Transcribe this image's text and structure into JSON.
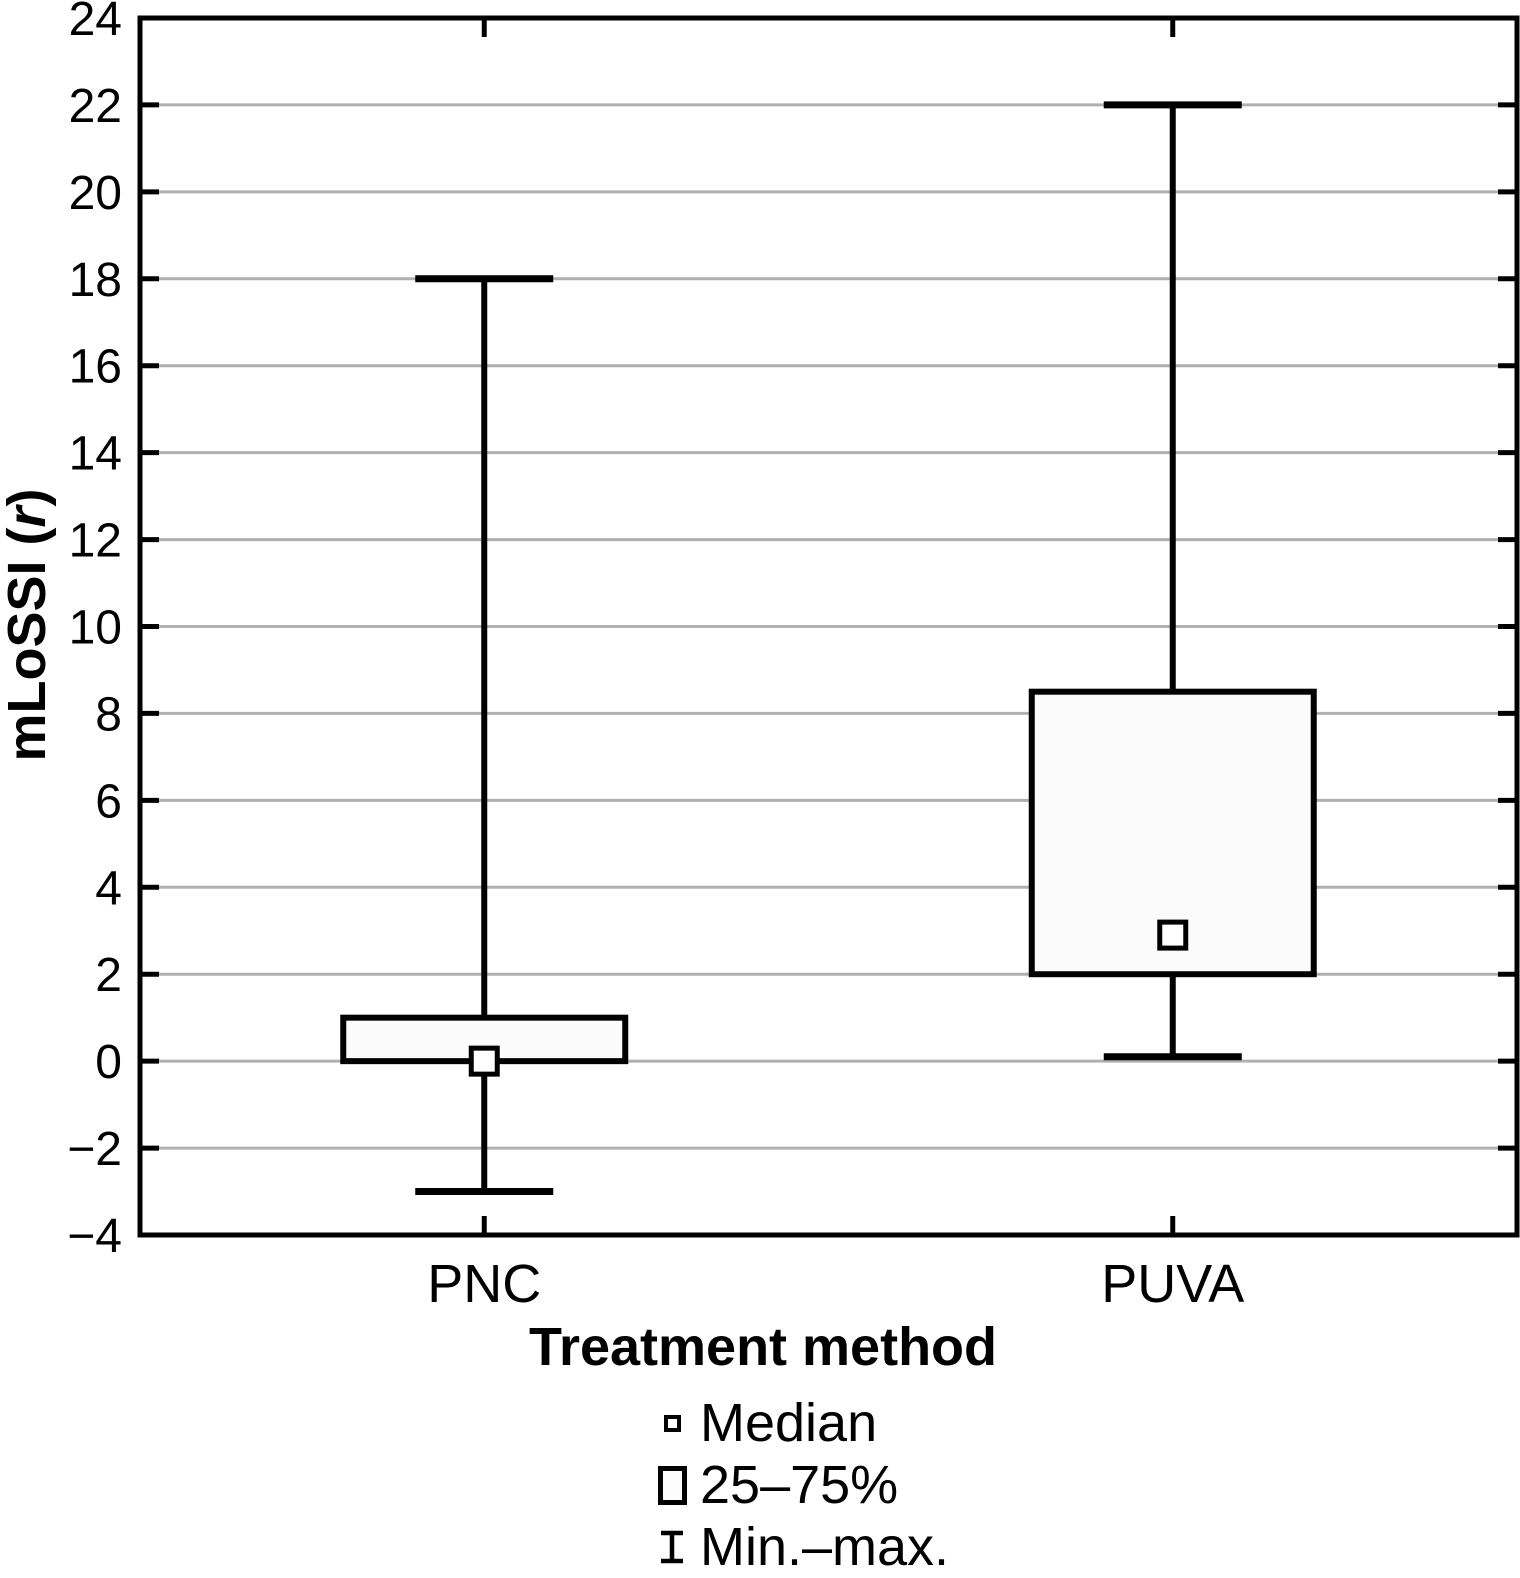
{
  "y_axis": {
    "label_prefix": "mLoSSI (",
    "label_italic": "r",
    "label_suffix": ")"
  },
  "x_axis": {
    "label": "Treatment method"
  },
  "legend": {
    "items": [
      {
        "symbol": "median-point-icon",
        "label": "Median"
      },
      {
        "symbol": "iqr-box-icon",
        "label": "25–75%"
      },
      {
        "symbol": "min-max-whisker-icon",
        "label": "Min.–max."
      }
    ]
  },
  "chart_data": {
    "type": "boxplot",
    "title": "",
    "xlabel": "Treatment method",
    "ylabel": "mLoSSI (r)",
    "categories": [
      "PNC",
      "PUVA"
    ],
    "ylim": [
      -4,
      24
    ],
    "yticks": [
      24,
      22,
      20,
      18,
      16,
      14,
      12,
      10,
      8,
      6,
      4,
      2,
      0,
      -2,
      -4
    ],
    "grid": true,
    "legend_position": "bottom",
    "series": [
      {
        "name": "PNC",
        "min": -3,
        "q1": 0,
        "median": 0,
        "q3": 1,
        "max": 18
      },
      {
        "name": "PUVA",
        "min": 0.1,
        "q1": 2,
        "median": 2.9,
        "q3": 8.5,
        "max": 22
      }
    ],
    "colors": {
      "line": "#000000",
      "grid": "#b0b0b0",
      "box_fill": "#fbfbfb",
      "median_fill": "#ffffff",
      "background": "#ffffff"
    }
  }
}
